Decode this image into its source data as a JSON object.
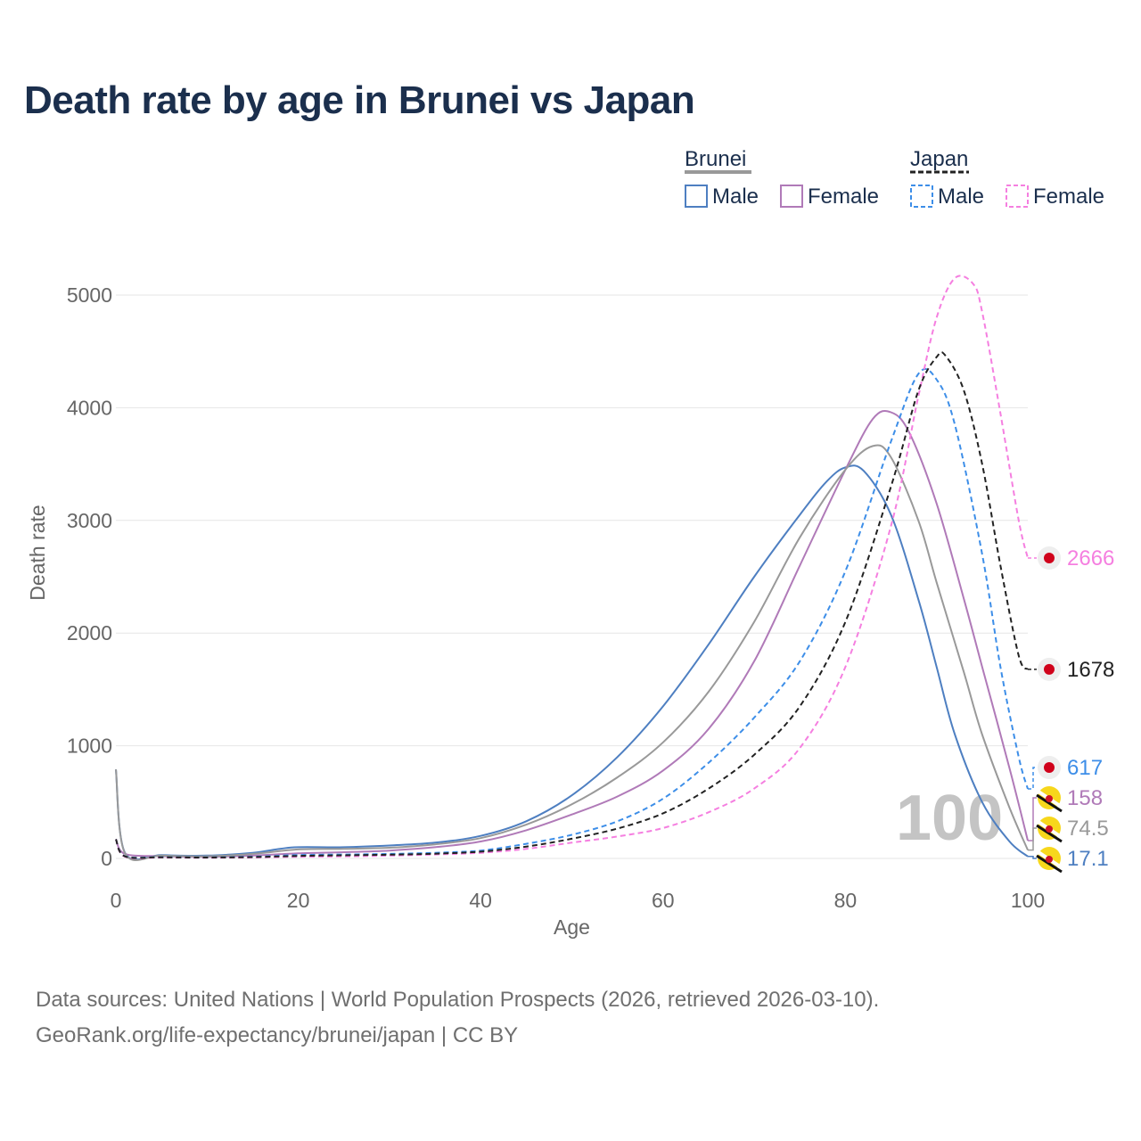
{
  "title": "Death rate by age in Brunei vs Japan",
  "sources": {
    "line1": "Data sources: United Nations | World Population Prospects (2026, retrieved 2026-03-10).",
    "line2": "GeoRank.org/life-expectancy/brunei/japan | CC BY"
  },
  "legend": {
    "group1": "Brunei",
    "group2": "Japan",
    "male": "Male",
    "female": "Female"
  },
  "colors": {
    "brunei_male": "#4e7fc1",
    "brunei_female": "#b07ab8",
    "brunei_total": "#999999",
    "japan_male": "#3d8ee8",
    "japan_female": "#f57fe0",
    "japan_total": "#222222",
    "grid": "#e6e6e6",
    "axis_text": "#666666"
  },
  "chart_data": {
    "type": "line",
    "title": "Death rate by age in Brunei vs Japan",
    "xlabel": "Age",
    "ylabel": "Death rate",
    "xlim": [
      0,
      100
    ],
    "ylim": [
      0,
      5000
    ],
    "x_ticks": [
      0,
      20,
      40,
      60,
      80,
      100
    ],
    "y_ticks": [
      0,
      1000,
      2000,
      3000,
      4000,
      5000
    ],
    "grid": true,
    "legend_position": "top-right",
    "watermark": "100",
    "series": [
      {
        "name": "Brunei Male",
        "key": "brunei_male",
        "dash": false,
        "end_label": "17.1",
        "flag": "brunei",
        "points": [
          [
            0,
            790
          ],
          [
            1,
            50
          ],
          [
            5,
            30
          ],
          [
            10,
            25
          ],
          [
            15,
            50
          ],
          [
            18,
            85
          ],
          [
            20,
            100
          ],
          [
            25,
            100
          ],
          [
            30,
            115
          ],
          [
            35,
            140
          ],
          [
            40,
            200
          ],
          [
            45,
            330
          ],
          [
            50,
            560
          ],
          [
            55,
            900
          ],
          [
            60,
            1350
          ],
          [
            65,
            1900
          ],
          [
            70,
            2500
          ],
          [
            75,
            3050
          ],
          [
            78,
            3350
          ],
          [
            80,
            3470
          ],
          [
            82,
            3440
          ],
          [
            85,
            3050
          ],
          [
            88,
            2300
          ],
          [
            90,
            1700
          ],
          [
            92,
            1100
          ],
          [
            95,
            500
          ],
          [
            98,
            150
          ],
          [
            100,
            17.1
          ]
        ]
      },
      {
        "name": "Brunei Female",
        "key": "brunei_female",
        "dash": false,
        "end_label": "158",
        "flag": "brunei",
        "points": [
          [
            0,
            170
          ],
          [
            1,
            40
          ],
          [
            5,
            20
          ],
          [
            10,
            15
          ],
          [
            15,
            25
          ],
          [
            20,
            45
          ],
          [
            25,
            55
          ],
          [
            30,
            70
          ],
          [
            35,
            100
          ],
          [
            40,
            150
          ],
          [
            45,
            250
          ],
          [
            50,
            390
          ],
          [
            55,
            550
          ],
          [
            60,
            780
          ],
          [
            65,
            1150
          ],
          [
            70,
            1750
          ],
          [
            75,
            2600
          ],
          [
            80,
            3450
          ],
          [
            83,
            3900
          ],
          [
            85,
            3960
          ],
          [
            87,
            3780
          ],
          [
            90,
            3150
          ],
          [
            93,
            2300
          ],
          [
            95,
            1700
          ],
          [
            98,
            800
          ],
          [
            100,
            158
          ]
        ]
      },
      {
        "name": "Brunei Total",
        "key": "brunei_total",
        "dash": false,
        "end_label": "74.5",
        "flag": "brunei",
        "points": [
          [
            0,
            790
          ],
          [
            1,
            45
          ],
          [
            5,
            25
          ],
          [
            10,
            20
          ],
          [
            15,
            40
          ],
          [
            20,
            80
          ],
          [
            25,
            85
          ],
          [
            30,
            95
          ],
          [
            35,
            125
          ],
          [
            40,
            180
          ],
          [
            45,
            300
          ],
          [
            50,
            480
          ],
          [
            55,
            720
          ],
          [
            60,
            1030
          ],
          [
            65,
            1480
          ],
          [
            70,
            2100
          ],
          [
            75,
            2850
          ],
          [
            80,
            3450
          ],
          [
            83,
            3660
          ],
          [
            85,
            3560
          ],
          [
            88,
            3000
          ],
          [
            90,
            2450
          ],
          [
            93,
            1650
          ],
          [
            95,
            1100
          ],
          [
            98,
            450
          ],
          [
            100,
            74.5
          ]
        ]
      },
      {
        "name": "Japan Male",
        "key": "japan_male",
        "dash": true,
        "end_label": "617",
        "flag": "japan",
        "points": [
          [
            0,
            170
          ],
          [
            1,
            20
          ],
          [
            5,
            12
          ],
          [
            10,
            10
          ],
          [
            15,
            15
          ],
          [
            20,
            30
          ],
          [
            25,
            35
          ],
          [
            30,
            40
          ],
          [
            35,
            50
          ],
          [
            40,
            70
          ],
          [
            45,
            130
          ],
          [
            50,
            210
          ],
          [
            55,
            330
          ],
          [
            60,
            530
          ],
          [
            65,
            850
          ],
          [
            70,
            1250
          ],
          [
            75,
            1750
          ],
          [
            80,
            2550
          ],
          [
            85,
            3700
          ],
          [
            88,
            4300
          ],
          [
            90,
            4250
          ],
          [
            92,
            3850
          ],
          [
            95,
            2700
          ],
          [
            97,
            1700
          ],
          [
            99,
            900
          ],
          [
            100,
            617
          ]
        ]
      },
      {
        "name": "Japan Female",
        "key": "japan_female",
        "dash": true,
        "end_label": "2666",
        "flag": "japan",
        "points": [
          [
            0,
            170
          ],
          [
            1,
            15
          ],
          [
            5,
            8
          ],
          [
            10,
            6
          ],
          [
            15,
            8
          ],
          [
            20,
            15
          ],
          [
            25,
            18
          ],
          [
            30,
            25
          ],
          [
            35,
            35
          ],
          [
            40,
            50
          ],
          [
            45,
            85
          ],
          [
            50,
            140
          ],
          [
            55,
            195
          ],
          [
            60,
            270
          ],
          [
            65,
            410
          ],
          [
            70,
            620
          ],
          [
            75,
            980
          ],
          [
            80,
            1700
          ],
          [
            85,
            2950
          ],
          [
            88,
            4100
          ],
          [
            90,
            4800
          ],
          [
            92,
            5150
          ],
          [
            94,
            5100
          ],
          [
            95,
            4850
          ],
          [
            97,
            3950
          ],
          [
            99,
            3000
          ],
          [
            100,
            2666
          ]
        ]
      },
      {
        "name": "Japan Total",
        "key": "japan_total",
        "dash": true,
        "end_label": "1678",
        "flag": "japan",
        "points": [
          [
            0,
            170
          ],
          [
            1,
            18
          ],
          [
            5,
            10
          ],
          [
            10,
            8
          ],
          [
            15,
            12
          ],
          [
            20,
            22
          ],
          [
            25,
            28
          ],
          [
            30,
            33
          ],
          [
            35,
            42
          ],
          [
            40,
            60
          ],
          [
            45,
            105
          ],
          [
            50,
            175
          ],
          [
            55,
            265
          ],
          [
            60,
            400
          ],
          [
            65,
            620
          ],
          [
            70,
            920
          ],
          [
            75,
            1350
          ],
          [
            80,
            2100
          ],
          [
            85,
            3300
          ],
          [
            88,
            4150
          ],
          [
            90,
            4450
          ],
          [
            91,
            4460
          ],
          [
            93,
            4150
          ],
          [
            95,
            3500
          ],
          [
            97,
            2600
          ],
          [
            99,
            1800
          ],
          [
            100,
            1678
          ]
        ]
      }
    ]
  }
}
